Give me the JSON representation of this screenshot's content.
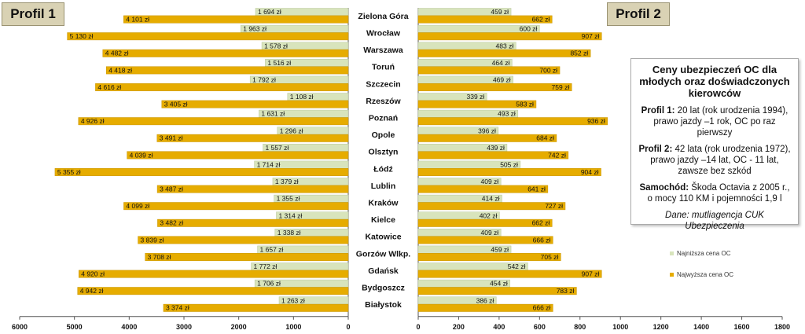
{
  "profile1_label": "Profil 1",
  "profile2_label": "Profil 2",
  "info": {
    "title": "Ceny ubezpieczeń OC dla młodych oraz doświadczonych kierowców",
    "p1_bold": "Profil 1:",
    "p1_text": " 20 lat (rok urodzenia 1994), prawo jazdy –1 rok, OC po raz pierwszy",
    "p2_bold": "Profil 2:",
    "p2_text": " 42 lata (rok urodzenia 1972), prawo jazdy –14 lat, OC - 11 lat, zawsze bez szkód",
    "car_bold": "Samochód:",
    "car_text": " Škoda Octavia z 2005 r., o mocy 110 KM i pojemności 1,9 l",
    "source": "Dane: mutliagencja CUK Ubezpieczenia"
  },
  "legend": {
    "min_label": "Najniższa cena OC",
    "max_label": "Najwyższa cena OC"
  },
  "colors": {
    "min": "#d8e4bc",
    "max": "#e6ac00",
    "box": "#d9d2b4"
  },
  "chart_data": [
    {
      "type": "bar",
      "orientation": "horizontal",
      "direction": "reversed",
      "title": "Profil 1",
      "unit": "zł",
      "xlim": [
        0,
        6000
      ],
      "x_ticks": [
        "6000",
        "5000",
        "4000",
        "3000",
        "2000",
        "1000",
        "0"
      ],
      "categories": [
        "Zielona Góra",
        "Wrocław",
        "Warszawa",
        "Toruń",
        "Szczecin",
        "Rzeszów",
        "Poznań",
        "Opole",
        "Olsztyn",
        "Łódź",
        "Lublin",
        "Kraków",
        "Kielce",
        "Katowice",
        "Gorzów Wlkp.",
        "Gdańsk",
        "Bydgoszcz",
        "Białystok"
      ],
      "series": [
        {
          "name": "Najniższa cena OC",
          "values": [
            1694,
            1963,
            1578,
            1516,
            1792,
            1108,
            1631,
            1296,
            1557,
            1714,
            1379,
            1355,
            1314,
            1338,
            1657,
            1772,
            1706,
            1263
          ],
          "labels": [
            "1 694 zł",
            "1 963 zł",
            "1 578 zł",
            "1 516 zł",
            "1 792 zł",
            "1 108 zł",
            "1 631 zł",
            "1 296 zł",
            "1 557 zł",
            "1 714 zł",
            "1 379 zł",
            "1 355 zł",
            "1 314 zł",
            "1 338 zł",
            "1 657 zł",
            "1 772 zł",
            "1 706 zł",
            "1 263 zł"
          ]
        },
        {
          "name": "Najwyższa cena OC",
          "values": [
            4101,
            5130,
            4482,
            4418,
            4616,
            3405,
            4926,
            3491,
            4039,
            5355,
            3487,
            4099,
            3482,
            3839,
            3708,
            4920,
            4942,
            3374
          ],
          "labels": [
            "4 101 zł",
            "5 130 zł",
            "4 482 zł",
            "4 418 zł",
            "4 616 zł",
            "3 405 zł",
            "4 926 zł",
            "3 491 zł",
            "4 039 zł",
            "5 355 zł",
            "3 487 zł",
            "4 099 zł",
            "3 482 zł",
            "3 839 zł",
            "3 708 zł",
            "4 920 zł",
            "4 942 zł",
            "3 374 zł"
          ]
        }
      ]
    },
    {
      "type": "bar",
      "orientation": "horizontal",
      "title": "Profil 2",
      "unit": "zł",
      "xlim": [
        0,
        1800
      ],
      "x_ticks": [
        "0",
        "200",
        "400",
        "600",
        "800",
        "1000",
        "1200",
        "1400",
        "1600",
        "1800"
      ],
      "categories": [
        "Zielona Góra",
        "Wrocław",
        "Warszawa",
        "Toruń",
        "Szczecin",
        "Rzeszów",
        "Poznań",
        "Opole",
        "Olsztyn",
        "Łódź",
        "Lublin",
        "Kraków",
        "Kielce",
        "Katowice",
        "Gorzów Wlkp.",
        "Gdańsk",
        "Bydgoszcz",
        "Białystok"
      ],
      "series": [
        {
          "name": "Najniższa cena OC",
          "values": [
            459,
            600,
            483,
            464,
            469,
            339,
            493,
            396,
            439,
            505,
            409,
            414,
            402,
            409,
            459,
            542,
            454,
            386
          ],
          "labels": [
            "459 zł",
            "600 zł",
            "483 zł",
            "464 zł",
            "469 zł",
            "339 zł",
            "493 zł",
            "396 zł",
            "439 zł",
            "505 zł",
            "409 zł",
            "414 zł",
            "402 zł",
            "409 zł",
            "459 zł",
            "542 zł",
            "454 zł",
            "386 zł"
          ]
        },
        {
          "name": "Najwyższa cena OC",
          "values": [
            662,
            907,
            852,
            700,
            759,
            583,
            936,
            684,
            742,
            904,
            641,
            727,
            662,
            666,
            705,
            907,
            783,
            666
          ],
          "labels": [
            "662 zł",
            "907 zł",
            "852 zł",
            "700 zł",
            "759 zł",
            "583 zł",
            "936 zł",
            "684 zł",
            "742 zł",
            "904 zł",
            "641 zł",
            "727 zł",
            "662 zł",
            "666 zł",
            "705 zł",
            "907 zł",
            "783 zł",
            "666 zł"
          ]
        }
      ]
    }
  ]
}
